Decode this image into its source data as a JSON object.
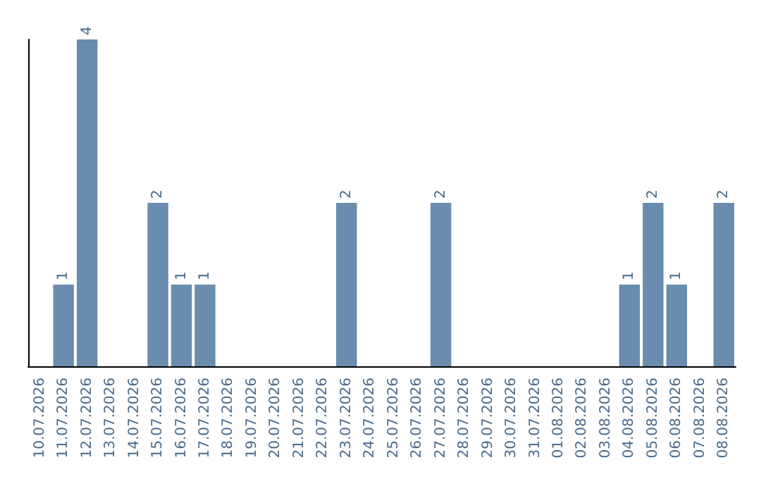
{
  "chart_data": {
    "type": "bar",
    "categories": [
      "10.07.2026",
      "11.07.2026",
      "12.07.2026",
      "13.07.2026",
      "14.07.2026",
      "15.07.2026",
      "16.07.2026",
      "17.07.2026",
      "18.07.2026",
      "19.07.2026",
      "20.07.2026",
      "21.07.2026",
      "22.07.2026",
      "23.07.2026",
      "24.07.2026",
      "25.07.2026",
      "26.07.2026",
      "27.07.2026",
      "28.07.2026",
      "29.07.2026",
      "30.07.2026",
      "31.07.2026",
      "01.08.2026",
      "02.08.2026",
      "03.08.2026",
      "04.08.2026",
      "05.08.2026",
      "06.08.2026",
      "07.08.2026",
      "08.08.2026"
    ],
    "values": [
      0,
      1,
      4,
      0,
      0,
      2,
      1,
      1,
      0,
      0,
      0,
      0,
      0,
      2,
      0,
      0,
      0,
      2,
      0,
      0,
      0,
      0,
      0,
      0,
      0,
      1,
      2,
      1,
      0,
      2
    ],
    "value_labels": [
      null,
      "1",
      "4",
      null,
      null,
      "2",
      "1",
      "1",
      null,
      null,
      null,
      null,
      null,
      "2",
      null,
      null,
      null,
      "2",
      null,
      null,
      null,
      null,
      null,
      null,
      null,
      "1",
      "2",
      "1",
      null,
      "2"
    ],
    "color": "#6a8cae"
  }
}
